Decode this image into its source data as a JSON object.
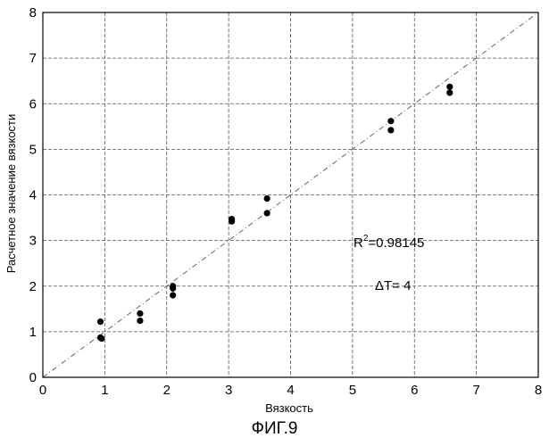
{
  "chart_data": {
    "type": "scatter",
    "title": "",
    "xlabel": "Вязкость",
    "ylabel": "Расчетное значение вязкости",
    "xlim": [
      0,
      8
    ],
    "ylim": [
      0,
      8
    ],
    "xticks": [
      "0",
      "1",
      "2",
      "3",
      "4",
      "5",
      "6",
      "7",
      "8"
    ],
    "yticks": [
      "0",
      "1",
      "2",
      "3",
      "4",
      "5",
      "6",
      "7",
      "8"
    ],
    "grid": true,
    "reference_line": {
      "style": "dash-dot",
      "from": [
        0,
        0
      ],
      "to": [
        8,
        8
      ]
    },
    "series": [
      {
        "points": [
          [
            0.93,
            1.22
          ],
          [
            0.95,
            0.85
          ],
          [
            0.93,
            0.87
          ],
          [
            1.57,
            1.4
          ],
          [
            1.57,
            1.24
          ],
          [
            2.1,
            2.0
          ],
          [
            2.1,
            1.95
          ],
          [
            2.1,
            1.8
          ],
          [
            3.05,
            3.47
          ],
          [
            3.05,
            3.42
          ],
          [
            3.62,
            3.92
          ],
          [
            3.62,
            3.6
          ],
          [
            5.62,
            5.62
          ],
          [
            5.62,
            5.42
          ],
          [
            6.57,
            6.37
          ],
          [
            6.57,
            6.24
          ]
        ]
      }
    ],
    "annotations": {
      "r2_label": "R",
      "r2_sup": "2",
      "r2_value": "=0.98145",
      "dt_label": "ΔT= 4"
    }
  },
  "caption": "ФИГ.9"
}
